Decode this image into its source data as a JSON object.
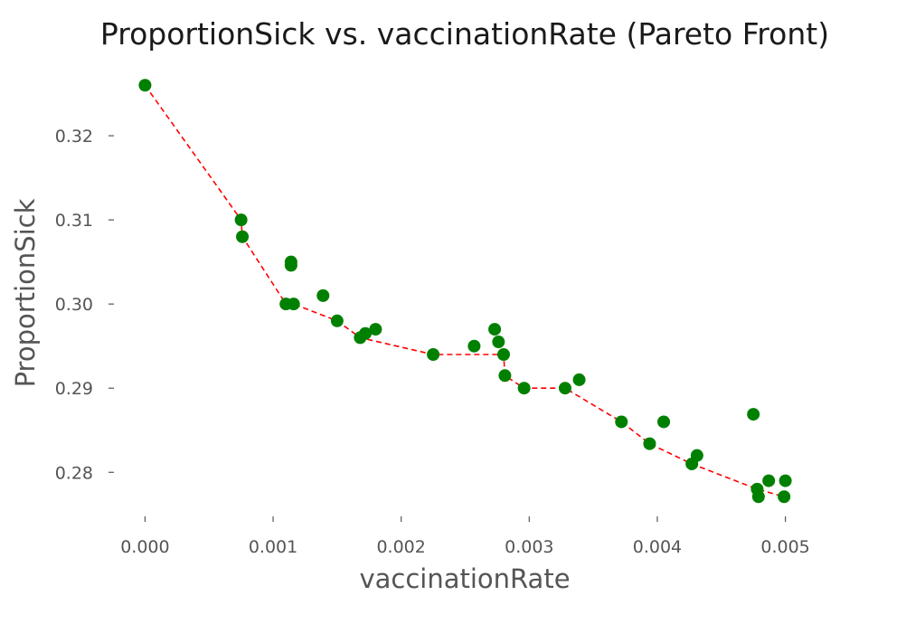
{
  "chart_data": {
    "type": "scatter",
    "title": "ProportionSick vs. vaccinationRate (Pareto Front)",
    "xlabel": "vaccinationRate",
    "ylabel": "ProportionSick",
    "xlim": [
      -0.00025,
      0.00525
    ],
    "ylim": [
      0.2753,
      0.3285
    ],
    "grid": false,
    "x_ticks": [
      0.0,
      0.001,
      0.002,
      0.003,
      0.004,
      0.005
    ],
    "x_tick_labels": [
      "0.000",
      "0.001",
      "0.002",
      "0.003",
      "0.004",
      "0.005"
    ],
    "y_ticks": [
      0.28,
      0.29,
      0.3,
      0.31,
      0.32
    ],
    "y_tick_labels": [
      "0.28",
      "0.29",
      "0.30",
      "0.31",
      "0.32"
    ],
    "colors": {
      "points": "#008000",
      "front": "#ff0000"
    },
    "points": [
      [
        0.0,
        0.326
      ],
      [
        0.00075,
        0.31
      ],
      [
        0.00076,
        0.308
      ],
      [
        0.0011,
        0.3
      ],
      [
        0.00114,
        0.305
      ],
      [
        0.00114,
        0.3046
      ],
      [
        0.00116,
        0.3
      ],
      [
        0.00139,
        0.301
      ],
      [
        0.0015,
        0.298
      ],
      [
        0.00168,
        0.296
      ],
      [
        0.00172,
        0.2965
      ],
      [
        0.0018,
        0.297
      ],
      [
        0.00225,
        0.294
      ],
      [
        0.00257,
        0.295
      ],
      [
        0.00273,
        0.297
      ],
      [
        0.00276,
        0.2955
      ],
      [
        0.0028,
        0.294
      ],
      [
        0.00281,
        0.2915
      ],
      [
        0.00296,
        0.29
      ],
      [
        0.00328,
        0.29
      ],
      [
        0.00339,
        0.291
      ],
      [
        0.00372,
        0.286
      ],
      [
        0.00394,
        0.2834
      ],
      [
        0.00405,
        0.286
      ],
      [
        0.00427,
        0.281
      ],
      [
        0.00431,
        0.282
      ],
      [
        0.00475,
        0.2869
      ],
      [
        0.00478,
        0.278
      ],
      [
        0.00479,
        0.2771
      ],
      [
        0.00487,
        0.279
      ],
      [
        0.00499,
        0.2771
      ],
      [
        0.005,
        0.279
      ]
    ],
    "pareto_front": [
      [
        0.0,
        0.326
      ],
      [
        0.00075,
        0.31
      ],
      [
        0.00076,
        0.308
      ],
      [
        0.0011,
        0.3
      ],
      [
        0.00116,
        0.3
      ],
      [
        0.0015,
        0.298
      ],
      [
        0.00168,
        0.296
      ],
      [
        0.00225,
        0.294
      ],
      [
        0.0028,
        0.294
      ],
      [
        0.00281,
        0.2915
      ],
      [
        0.00296,
        0.29
      ],
      [
        0.00328,
        0.29
      ],
      [
        0.00372,
        0.286
      ],
      [
        0.00394,
        0.2834
      ],
      [
        0.00427,
        0.281
      ],
      [
        0.00478,
        0.278
      ],
      [
        0.00499,
        0.2771
      ]
    ]
  }
}
